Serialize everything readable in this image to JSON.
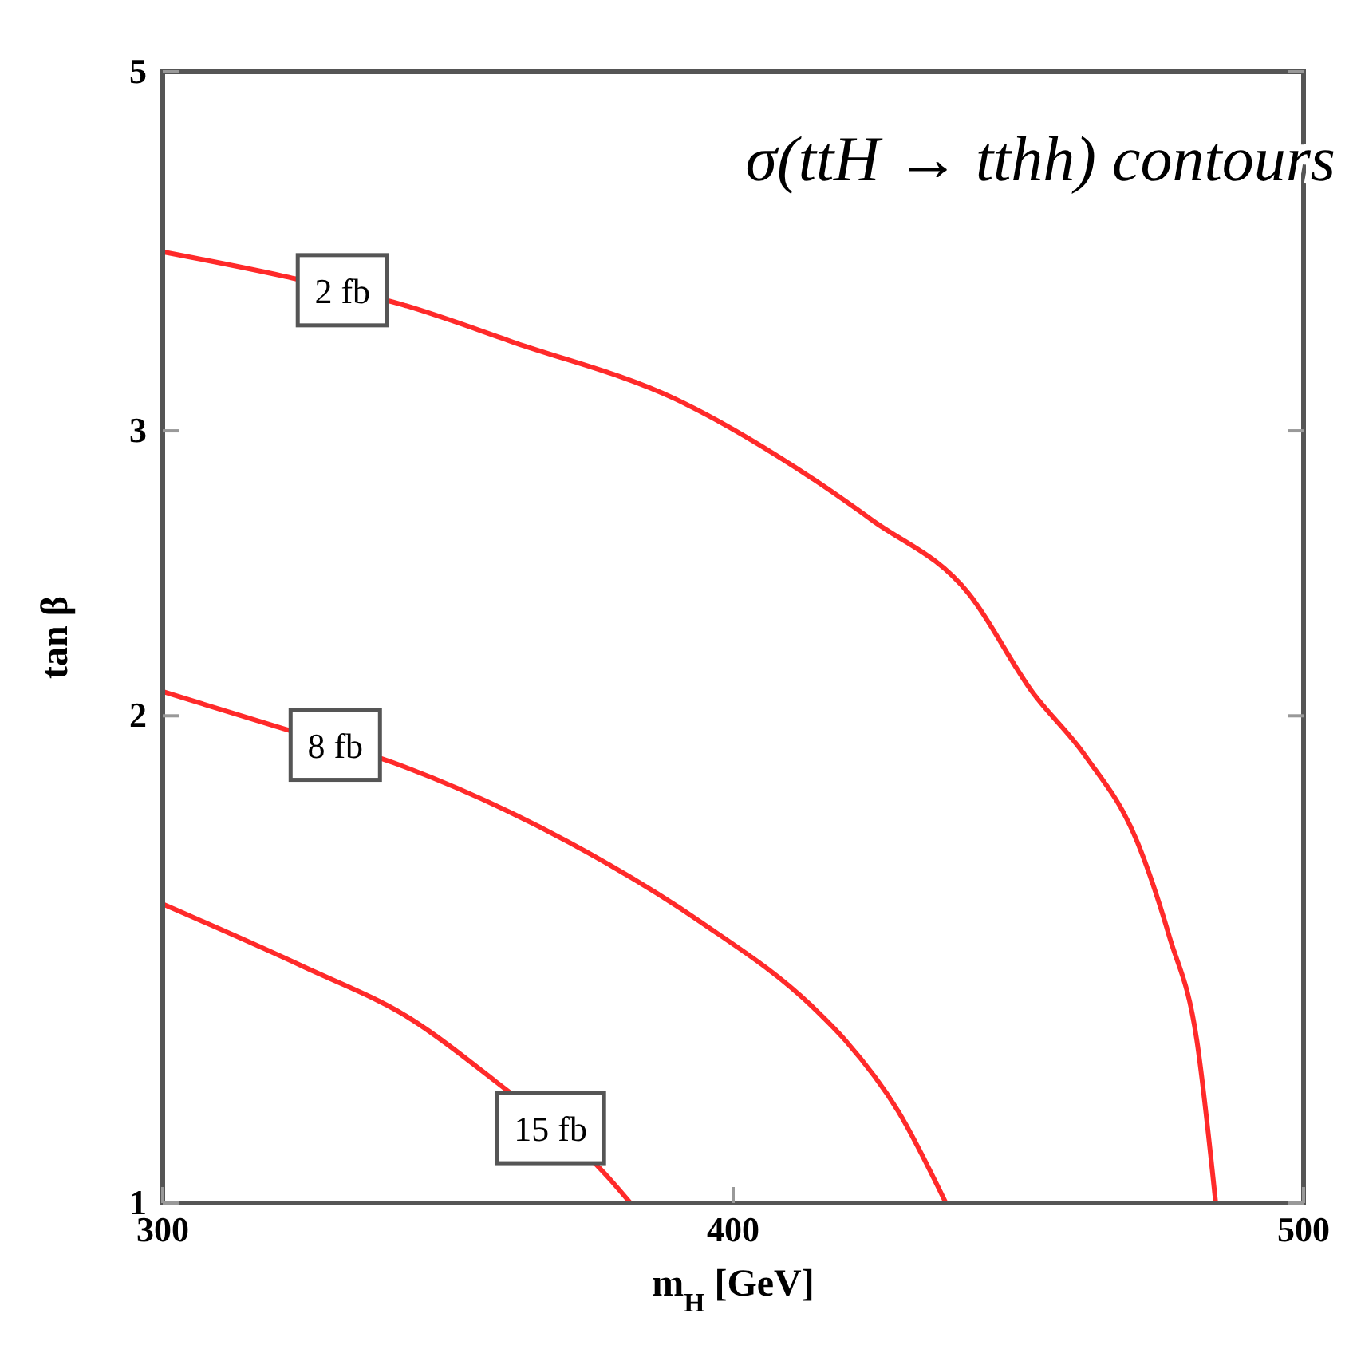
{
  "chart_data": {
    "type": "line",
    "title": "σ(ttH → tthh) contours",
    "xlabel": "m$_{H}$ [GeV]",
    "ylabel": "tan β",
    "xlim": [
      300,
      500
    ],
    "xticks": [
      300,
      400,
      500
    ],
    "ylim": [
      1,
      5
    ],
    "yticks": [
      1,
      2,
      3,
      5
    ],
    "log": "y",
    "grid": false,
    "marker": "none",
    "line_style": "solid",
    "series": [
      {
        "name": "2 fb",
        "color": "#ff2a2a",
        "x": [
          300,
          321,
          342,
          361.8,
          389.8,
          414.1,
          424.5,
          441.3,
          452.4,
          461.7,
          470.9,
          476.5,
          481.3,
          484.6
        ],
        "values": [
          3.87,
          3.74,
          3.59,
          3.4,
          3.14,
          2.8,
          2.64,
          2.38,
          2.07,
          1.89,
          1.67,
          1.46,
          1.26,
          1.0
        ]
      },
      {
        "name": "8 fb",
        "color": "#ff2a2a",
        "x": [
          300,
          319.9,
          340.6,
          371.3,
          394.5,
          414.1,
          419.7,
          428.9,
          437.3
        ],
        "values": [
          2.07,
          1.97,
          1.87,
          1.67,
          1.49,
          1.32,
          1.26,
          1.14,
          1.0
        ]
      },
      {
        "name": "15 fb",
        "color": "#ff2a2a",
        "x": [
          300,
          324.6,
          343.4,
          358.2,
          377.8,
          382
        ],
        "values": [
          1.53,
          1.4,
          1.3,
          1.19,
          1.04,
          1.0
        ]
      }
    ]
  }
}
